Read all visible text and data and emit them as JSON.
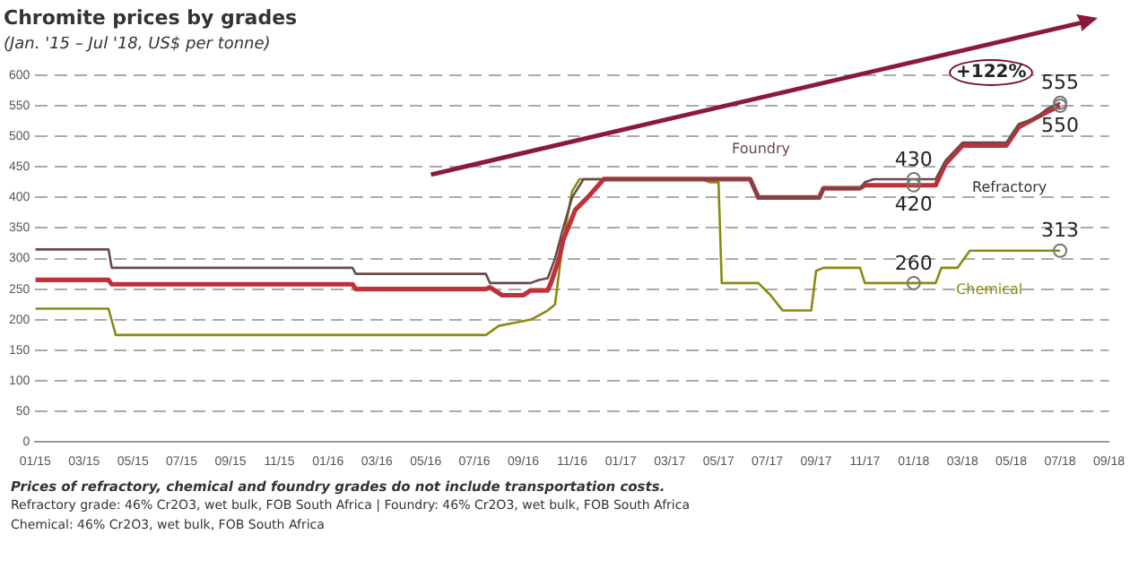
{
  "chart_data": {
    "type": "line",
    "title": "Chromite prices by grades",
    "subtitle": "(Jan. '15 – Jul '18, US$ per tonne)",
    "xlim": [
      "2015-01",
      "2018-09"
    ],
    "xticks": [
      {
        "value": "2015-01",
        "label": "01/15"
      },
      {
        "value": "2015-03",
        "label": "03/15"
      },
      {
        "value": "2015-05",
        "label": "05/15"
      },
      {
        "value": "2015-07",
        "label": "07/15"
      },
      {
        "value": "2015-09",
        "label": "09/15"
      },
      {
        "value": "2015-11",
        "label": "11/15"
      },
      {
        "value": "2016-01",
        "label": "01/16"
      },
      {
        "value": "2016-03",
        "label": "03/16"
      },
      {
        "value": "2016-05",
        "label": "05/16"
      },
      {
        "value": "2016-07",
        "label": "07/16"
      },
      {
        "value": "2016-09",
        "label": "09/16"
      },
      {
        "value": "2016-11",
        "label": "11/16"
      },
      {
        "value": "2017-01",
        "label": "01/17"
      },
      {
        "value": "2017-03",
        "label": "03/17"
      },
      {
        "value": "2017-05",
        "label": "05/17"
      },
      {
        "value": "2017-07",
        "label": "07/17"
      },
      {
        "value": "2017-09",
        "label": "09/17"
      },
      {
        "value": "2017-11",
        "label": "11/17"
      },
      {
        "value": "2018-01",
        "label": "01/18"
      },
      {
        "value": "2018-03",
        "label": "03/18"
      },
      {
        "value": "2018-05",
        "label": "05/18"
      },
      {
        "value": "2018-07",
        "label": "07/18"
      },
      {
        "value": "2018-09",
        "label": "09/18"
      }
    ],
    "ylim": [
      0,
      600
    ],
    "yticks": [
      0,
      50,
      100,
      150,
      200,
      250,
      300,
      350,
      400,
      450,
      500,
      550,
      600
    ],
    "grid": "y",
    "legend": false,
    "series": [
      {
        "name": "Foundry",
        "color": "#6b4a4a",
        "x": [
          "2015-01-01",
          "2015-04-01",
          "2015-04-05",
          "2016-02-01",
          "2016-02-05",
          "2016-07-15",
          "2016-07-20",
          "2016-09-10",
          "2016-09-20",
          "2016-10-01",
          "2016-10-10",
          "2016-10-20",
          "2016-11-01",
          "2016-11-15",
          "2017-06-10",
          "2017-06-20",
          "2017-09-05",
          "2017-09-10",
          "2017-10-25",
          "2017-11-01",
          "2017-11-12",
          "2018-01-01",
          "2018-01-28",
          "2018-02-10",
          "2018-03-01",
          "2018-04-25",
          "2018-05-10",
          "2018-06-01",
          "2018-06-15",
          "2018-07-01"
        ],
        "values": [
          315,
          315,
          285,
          285,
          275,
          275,
          260,
          260,
          265,
          268,
          300,
          350,
          400,
          430,
          430,
          400,
          400,
          415,
          415,
          425,
          430,
          430,
          430,
          460,
          490,
          490,
          520,
          530,
          545,
          555
        ]
      },
      {
        "name": "Refractory",
        "color": "#c0303a",
        "x": [
          "2015-01-01",
          "2015-04-01",
          "2015-04-05",
          "2016-02-01",
          "2016-02-05",
          "2016-07-15",
          "2016-07-20",
          "2016-08-05",
          "2016-09-01",
          "2016-09-10",
          "2016-10-01",
          "2016-10-05",
          "2016-10-15",
          "2016-10-20",
          "2016-11-05",
          "2016-11-20",
          "2016-12-10",
          "2017-06-10",
          "2017-06-20",
          "2017-09-05",
          "2017-09-10",
          "2017-10-25",
          "2017-11-01",
          "2018-01-01",
          "2018-01-28",
          "2018-02-10",
          "2018-03-01",
          "2018-04-25",
          "2018-05-10",
          "2018-06-01",
          "2018-06-15",
          "2018-07-01"
        ],
        "values": [
          265,
          265,
          258,
          258,
          250,
          250,
          253,
          240,
          240,
          248,
          248,
          260,
          300,
          330,
          380,
          400,
          430,
          430,
          400,
          400,
          415,
          415,
          420,
          420,
          420,
          455,
          485,
          485,
          515,
          530,
          540,
          550
        ]
      },
      {
        "name": "Chemical",
        "color": "#8a8a10",
        "x": [
          "2015-01-01",
          "2015-04-01",
          "2015-04-10",
          "2016-07-15",
          "2016-08-01",
          "2016-08-20",
          "2016-09-10",
          "2016-10-01",
          "2016-10-10",
          "2016-10-20",
          "2016-11-01",
          "2016-11-10",
          "2017-04-10",
          "2017-04-20",
          "2017-05-01",
          "2017-05-05",
          "2017-06-20",
          "2017-07-05",
          "2017-07-20",
          "2017-08-25",
          "2017-09-01",
          "2017-09-10",
          "2017-10-25",
          "2017-11-01",
          "2018-01-01",
          "2018-01-28",
          "2018-02-05",
          "2018-02-25",
          "2018-03-10",
          "2018-07-01"
        ],
        "values": [
          218,
          218,
          175,
          175,
          190,
          195,
          200,
          215,
          225,
          330,
          410,
          430,
          430,
          425,
          425,
          260,
          260,
          240,
          215,
          215,
          280,
          285,
          285,
          260,
          260,
          260,
          285,
          285,
          313,
          313
        ]
      }
    ],
    "annotations": [
      {
        "text": "+122%"
      },
      {
        "text": "430",
        "x": "2018-01-01",
        "y": 430
      },
      {
        "text": "420",
        "x": "2018-01-01",
        "y": 420
      },
      {
        "text": "260",
        "x": "2018-01-01",
        "y": 260
      },
      {
        "text": "555",
        "x": "2018-07-01",
        "y": 555
      },
      {
        "text": "550",
        "x": "2018-07-01",
        "y": 550
      },
      {
        "text": "313",
        "x": "2018-07-01",
        "y": 313
      },
      "Prices of refractory, chemical and foundry grades do not include transportation costs.",
      "Refractory grade: 46% Cr2O3, wet bulk, FOB South Africa | Foundry: 46% Cr2O3, wet bulk, FOB South Africa",
      "Chemical: 46% Cr2O3, wet bulk, FOB South Africa"
    ]
  }
}
